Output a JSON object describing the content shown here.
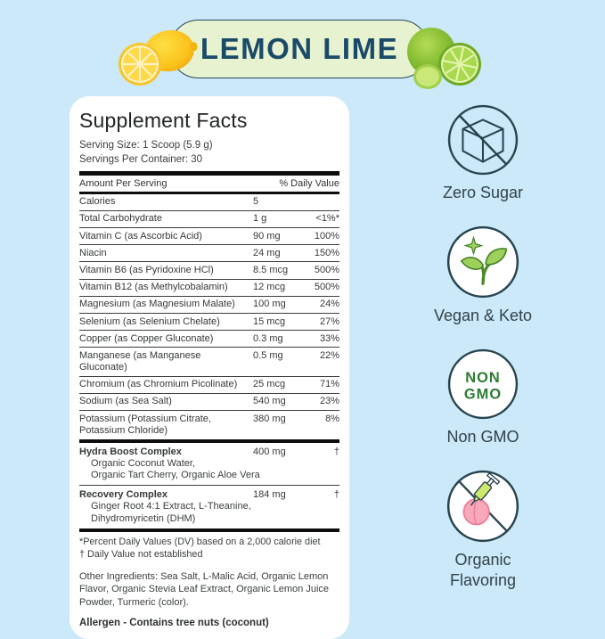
{
  "banner": {
    "title": "LEMON LIME"
  },
  "panel": {
    "title": "Supplement Facts",
    "serving_size": "Serving Size: 1 Scoop (5.9 g)",
    "servings_per_container": "Servings Per Container: 30",
    "col_left": "Amount Per Serving",
    "col_right": "% Daily Value",
    "rows": [
      {
        "name": "Calories",
        "amount": "5",
        "dv": ""
      },
      {
        "name": "Total Carbohydrate",
        "amount": "1 g",
        "dv": "<1%*"
      },
      {
        "name": "Vitamin C (as Ascorbic Acid)",
        "amount": "90 mg",
        "dv": "100%"
      },
      {
        "name": "Niacin",
        "amount": "24 mg",
        "dv": "150%"
      },
      {
        "name": "Vitamin B6  (as Pyridoxine HCl)",
        "amount": "8.5 mcg",
        "dv": "500%"
      },
      {
        "name": "Vitamin B12 (as Methylcobalamin)",
        "amount": "12 mcg",
        "dv": "500%"
      },
      {
        "name": "Magnesium (as Magnesium Malate)",
        "amount": "100 mg",
        "dv": "24%"
      },
      {
        "name": "Selenium (as Selenium Chelate)",
        "amount": "15 mcg",
        "dv": "27%"
      },
      {
        "name": "Copper (as Copper Gluconate)",
        "amount": "0.3 mg",
        "dv": "33%"
      },
      {
        "name": "Manganese (as Manganese Gluconate)",
        "amount": "0.5 mg",
        "dv": "22%"
      },
      {
        "name": "Chromium (as Chromium Picolinate)",
        "amount": "25 mcg",
        "dv": "71%"
      },
      {
        "name": "Sodium (as Sea Salt)",
        "amount": "540 mg",
        "dv": "23%"
      },
      {
        "name": "Potassium (Potassium Citrate, Potassium Chloride)",
        "amount": "380 mg",
        "dv": "8%"
      }
    ],
    "complexes": [
      {
        "name": "Hydra Boost Complex",
        "amount": "400 mg",
        "dv": "†",
        "subs": [
          "Organic Coconut Water,",
          "Organic Tart Cherry, Organic Aloe Vera"
        ]
      },
      {
        "name": "Recovery Complex",
        "amount": "184 mg",
        "dv": "†",
        "subs": [
          "Ginger Root 4:1 Extract, L-Theanine,",
          "Dihydromyricetin (DHM)"
        ]
      }
    ],
    "footnotes": [
      "*Percent Daily Values (DV) based on a 2,000 calorie diet",
      "† Daily Value not established"
    ],
    "other_ingredients": "Other Ingredients:  Sea Salt, L-Malic Acid, Organic Lemon Flavor, Organic Stevia Leaf Extract, Organic Lemon Juice Powder, Turmeric (color).",
    "allergen": "Allergen - Contains tree nuts (coconut)"
  },
  "badges": [
    {
      "label": "Zero Sugar"
    },
    {
      "label": "Vegan & Keto"
    },
    {
      "label": "Non GMO",
      "circle_line1": "NON",
      "circle_line2": "GMO"
    },
    {
      "label": "Organic Flavoring"
    }
  ],
  "colors": {
    "background": "#cbe9f8",
    "card": "#ffffff",
    "banner_fill": "#e7f3d0",
    "banner_border": "#27455c",
    "banner_text": "#1b4a68",
    "badge_outline": "#27444f",
    "nongmo_green": "#2e7d32",
    "sprout_green": "#9ed15c",
    "peach_pink": "#f8a8bb",
    "syringe_green": "#cfe96f",
    "lemon_yellow": "#fbc81f",
    "lime_green": "#8cc63f"
  }
}
